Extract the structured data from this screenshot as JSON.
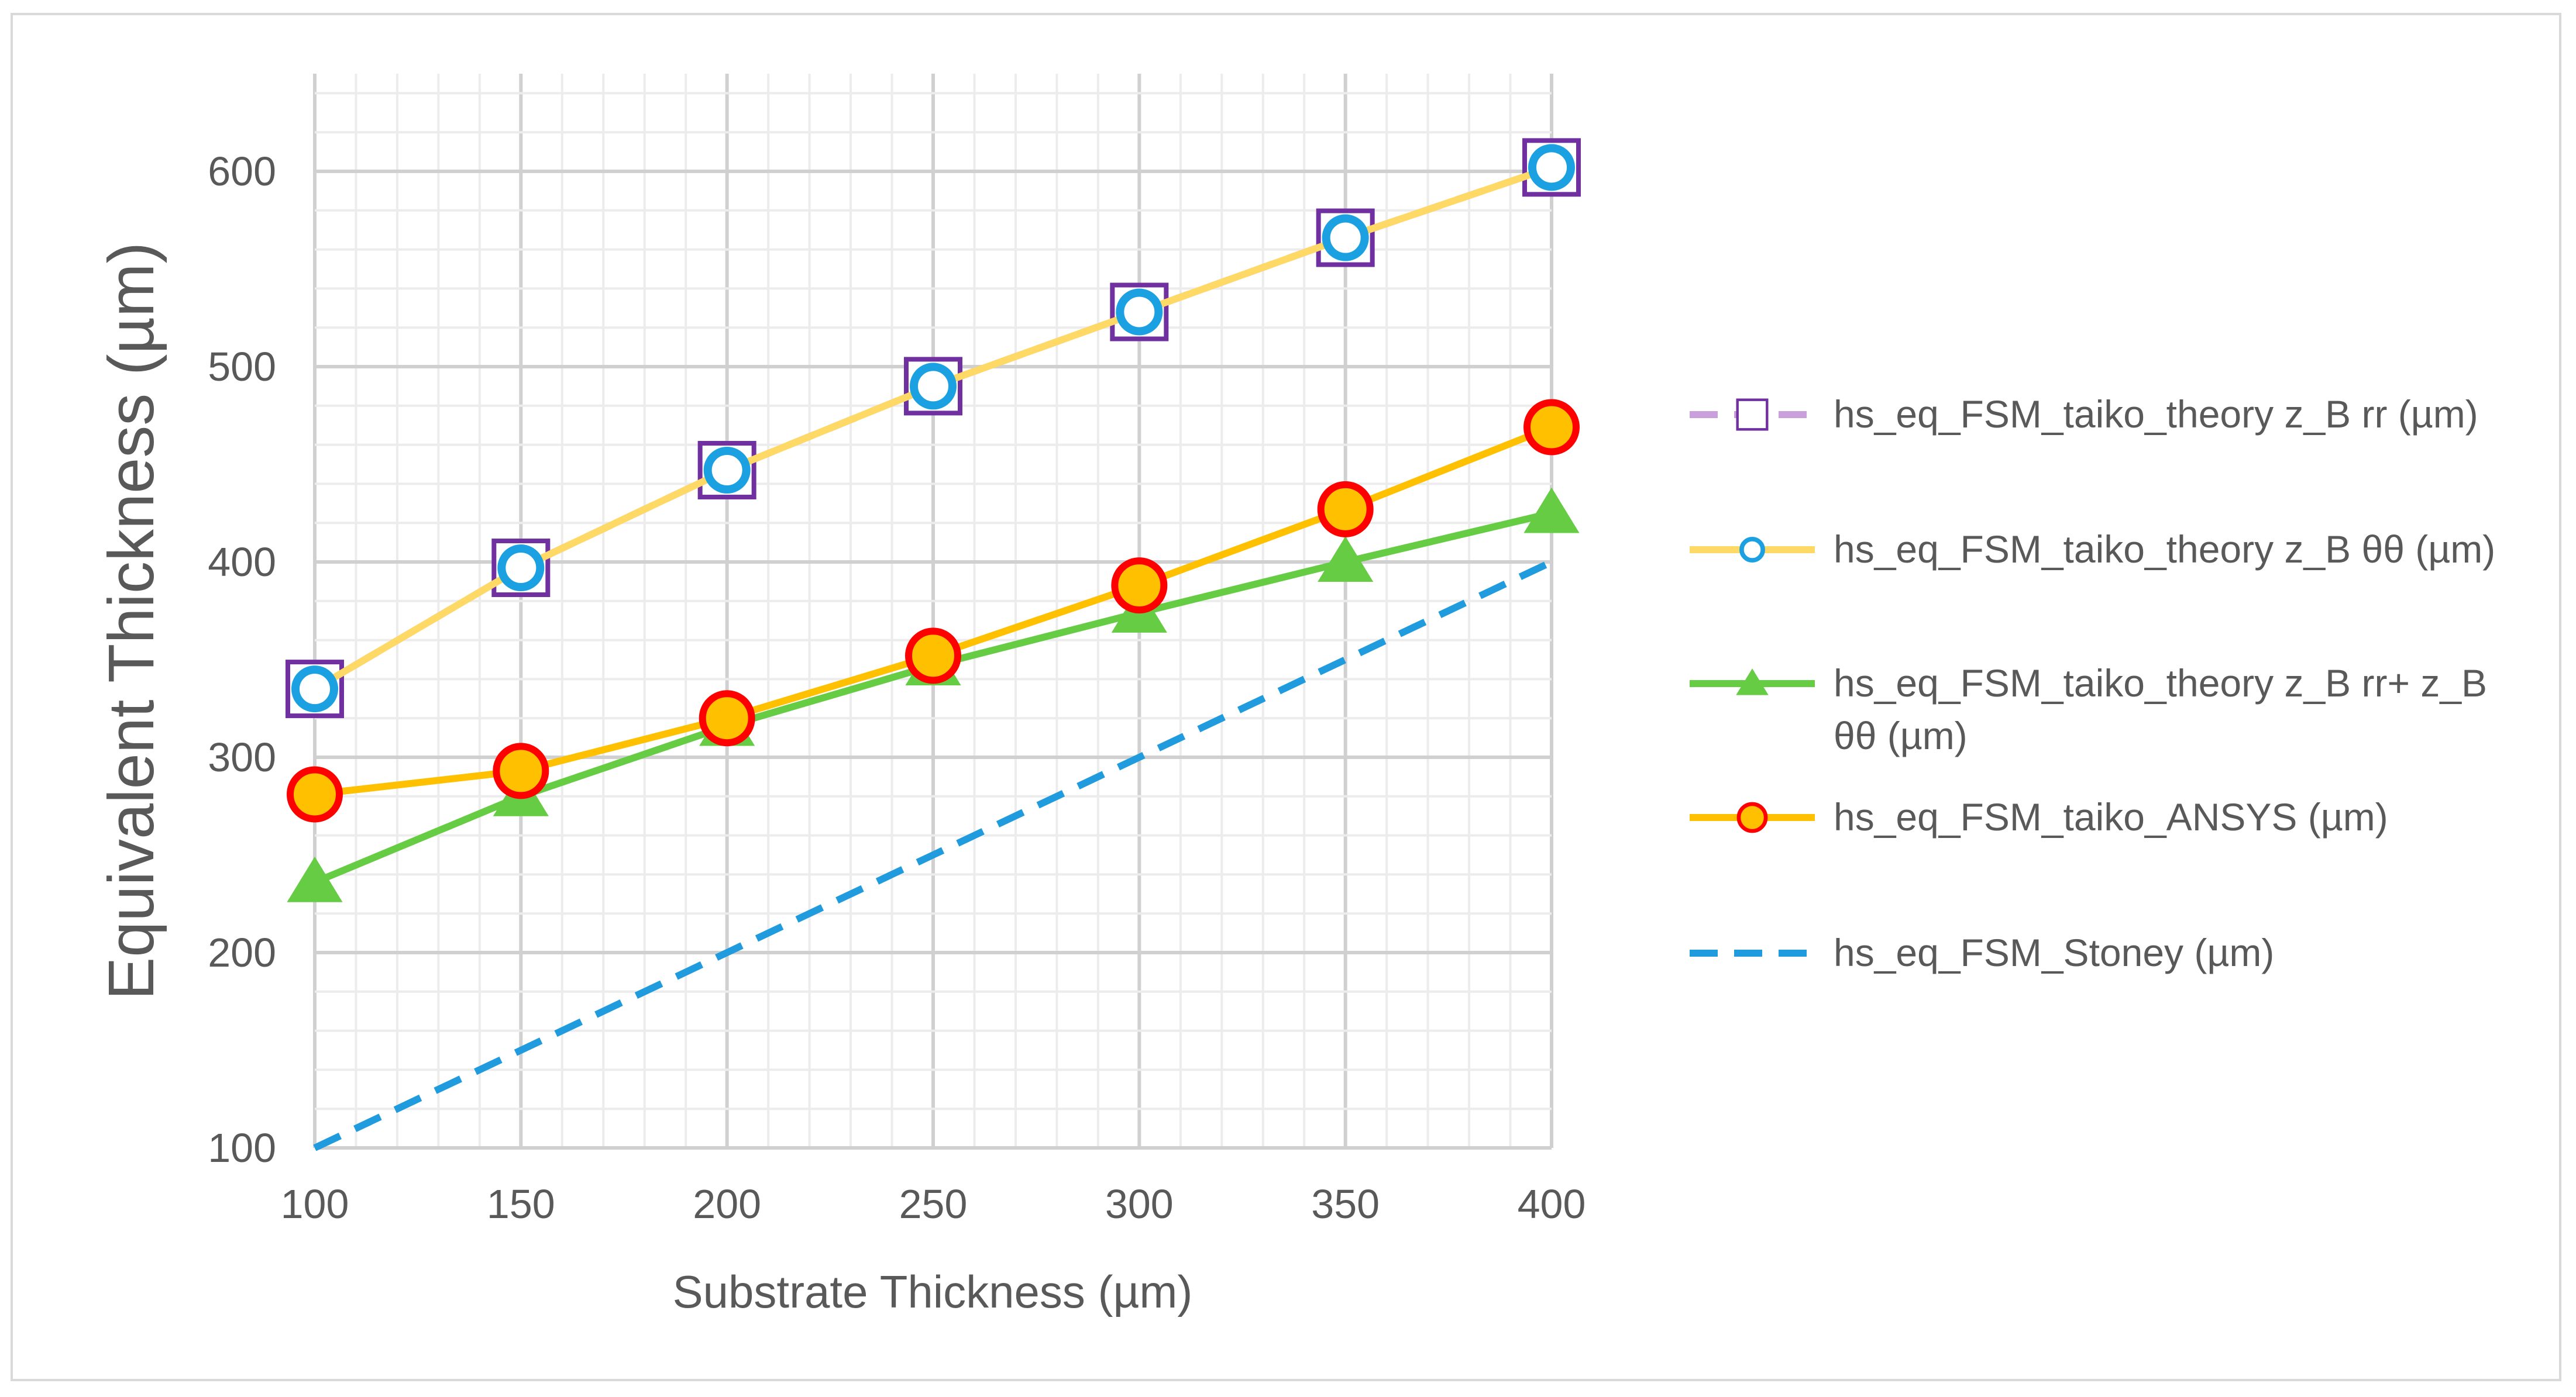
{
  "chart_data": {
    "type": "line",
    "title": "",
    "xlabel": "Substrate Thickness (µm)",
    "ylabel": "Equivalent Thickness (µm)",
    "x": [
      100,
      150,
      200,
      250,
      300,
      350,
      400
    ],
    "xlim": [
      100,
      400
    ],
    "ylim": [
      100,
      650
    ],
    "x_ticks": [
      "100",
      "150",
      "200",
      "250",
      "300",
      "350",
      "400"
    ],
    "y_ticks": [
      "100",
      "200",
      "300",
      "400",
      "500",
      "600"
    ],
    "grid": true,
    "legend_position": "right",
    "series": [
      {
        "name": "hs_eq_FSM_taiko_theory z_B rr (µm)",
        "values": [
          335,
          397,
          447,
          490,
          528,
          566,
          602
        ],
        "line_color": "#c9a0dc",
        "line_style": "dashed",
        "marker": "square",
        "marker_edge": "#7030a0",
        "marker_fill": "#ffffff"
      },
      {
        "name": "hs_eq_FSM_taiko_theory z_B θθ (µm)",
        "values": [
          335,
          397,
          447,
          490,
          528,
          566,
          602
        ],
        "line_color": "#ffd966",
        "line_style": "solid",
        "marker": "circle",
        "marker_edge": "#1ba1e2",
        "marker_fill": "#ffffff"
      },
      {
        "name": "hs_eq_FSM_taiko_theory z_B rr+ z_B θθ (µm)",
        "legend_lines": [
          "hs_eq_FSM_taiko_theory z_B rr+ z_B",
          "θθ (µm)"
        ],
        "values": [
          236,
          280,
          316,
          347,
          374,
          400,
          425
        ],
        "line_color": "#66cc44",
        "line_style": "solid",
        "marker": "triangle",
        "marker_edge": "#66cc44",
        "marker_fill": "#66cc44"
      },
      {
        "name": "hs_eq_FSM_taiko_ANSYS (µm)",
        "values": [
          281,
          293,
          320,
          352,
          388,
          427,
          469
        ],
        "line_color": "#ffc000",
        "line_style": "solid",
        "marker": "circle",
        "marker_edge": "#ff0000",
        "marker_fill": "#ffc000"
      },
      {
        "name": "hs_eq_FSM_Stoney (µm)",
        "values": [
          100,
          150,
          200,
          250,
          300,
          350,
          400
        ],
        "line_color": "#1f9bde",
        "line_style": "dashed",
        "marker": "none"
      }
    ]
  }
}
